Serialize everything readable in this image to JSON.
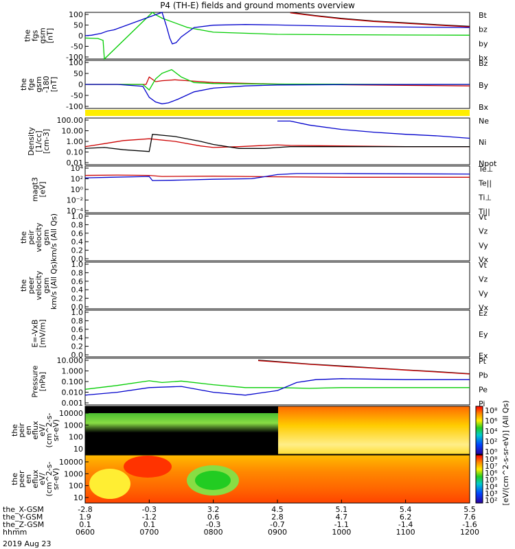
{
  "title": "P4 (TH-E) fields and ground moments overview",
  "colors": {
    "black": "#000000",
    "red": "#cc0000",
    "green": "#00cc00",
    "blue": "#0000cc",
    "yellow": "#ffee00"
  },
  "chart_data": {
    "type": "line",
    "panels": [
      {
        "id": "fgs",
        "ylabel_lines": [
          "the",
          "fgs",
          "gsm",
          "[nT]"
        ],
        "ytick_labels": [
          "100",
          "50",
          "0",
          "-50",
          "-100"
        ],
        "ylim": [
          -100,
          100
        ],
        "legend": [
          {
            "name": "Bt",
            "color": "black"
          },
          {
            "name": "bz",
            "color": "red"
          },
          {
            "name": "by",
            "color": "green"
          },
          {
            "name": "bx",
            "color": "blue"
          }
        ],
        "series": [
          {
            "name": "Bt",
            "color": "black",
            "x": [
              9.2,
              9.6,
              10.0,
              10.5,
              11.0,
              11.5,
              12.0
            ],
            "y": [
              100,
              86,
              74,
              63,
              55,
              47,
              40
            ]
          },
          {
            "name": "bz",
            "color": "red",
            "x": [
              9.2,
              9.6,
              10.0,
              10.5,
              11.0,
              11.5,
              12.0
            ],
            "y": [
              98,
              84,
              72,
              61,
              53,
              45,
              38
            ]
          },
          {
            "name": "by",
            "color": "green",
            "x": [
              6.0,
              6.2,
              6.28,
              6.3,
              7.05,
              7.1,
              7.2,
              7.4,
              7.6,
              8.0,
              9.0,
              10.0,
              11.0,
              12.0
            ],
            "y": [
              -10,
              -12,
              -20,
              -100,
              100,
              90,
              75,
              55,
              35,
              15,
              6,
              4,
              3,
              2
            ]
          },
          {
            "name": "bx",
            "color": "blue",
            "x": [
              6.0,
              6.1,
              6.25,
              6.35,
              6.45,
              7.2,
              7.27,
              7.32,
              7.36,
              7.42,
              7.5,
              7.7,
              8.0,
              8.5,
              9.0,
              10.0,
              11.0,
              12.0
            ],
            "y": [
              0,
              2,
              10,
              20,
              25,
              100,
              40,
              -10,
              -35,
              -30,
              -5,
              35,
              45,
              48,
              46,
              40,
              37,
              35
            ]
          }
        ]
      },
      {
        "id": "fge",
        "ylabel_lines": [
          "the",
          "fge",
          "gsm",
          "-180",
          "[nT]"
        ],
        "ytick_labels": [
          "100",
          "50",
          "0",
          "-50",
          "-100"
        ],
        "ylim": [
          -130,
          130
        ],
        "legend": [
          {
            "name": "Bz",
            "color": "red"
          },
          {
            "name": "By",
            "color": "green"
          },
          {
            "name": "Bx",
            "color": "blue"
          }
        ],
        "series": [
          {
            "name": "Bz",
            "color": "red",
            "x": [
              6.0,
              6.5,
              6.95,
              7.0,
              7.1,
              7.2,
              7.4,
              7.6,
              8.0,
              9.0,
              10.0,
              11.0,
              12.0
            ],
            "y": [
              0,
              0,
              0,
              40,
              15,
              20,
              25,
              20,
              10,
              2,
              -2,
              -5,
              -8
            ]
          },
          {
            "name": "By",
            "color": "green",
            "x": [
              6.0,
              6.5,
              6.9,
              7.0,
              7.1,
              7.2,
              7.35,
              7.5,
              7.7,
              8.0,
              9.0,
              10.0,
              11.0,
              12.0
            ],
            "y": [
              0,
              0,
              0,
              -30,
              30,
              60,
              80,
              40,
              10,
              5,
              2,
              1,
              0,
              0
            ]
          },
          {
            "name": "Bx",
            "color": "blue",
            "x": [
              6.0,
              6.5,
              6.9,
              7.0,
              7.1,
              7.2,
              7.3,
              7.45,
              7.7,
              8.0,
              8.5,
              9.0,
              10.0,
              12.0
            ],
            "y": [
              0,
              0,
              -10,
              -70,
              -95,
              -105,
              -100,
              -80,
              -40,
              -20,
              -8,
              -3,
              -1,
              0
            ]
          }
        ]
      },
      {
        "id": "density",
        "ylabel_lines": [
          "Density",
          "[1/cc]",
          "[cm-3]"
        ],
        "ytick_labels": [
          "100.00",
          "10.00",
          "1.00",
          "0.10",
          "0.01"
        ],
        "log": true,
        "ylim_log10": [
          -2.3,
          2.3
        ],
        "legend": [
          {
            "name": "Ne",
            "color": "red"
          },
          {
            "name": "Ni",
            "color": "black"
          },
          {
            "name": "Npot",
            "color": "blue"
          }
        ],
        "series": [
          {
            "name": "Ne",
            "color": "red",
            "x": [
              6.0,
              6.3,
              6.6,
              7.0,
              7.4,
              7.8,
              8.0,
              8.4,
              8.8,
              9.0,
              9.2,
              10.0,
              11.0,
              12.0
            ],
            "y": [
              0.3,
              0.6,
              1.2,
              1.8,
              1.0,
              0.35,
              0.25,
              0.3,
              0.4,
              0.45,
              0.4,
              0.35,
              0.3,
              0.3
            ]
          },
          {
            "name": "Ni",
            "color": "black",
            "x": [
              6.0,
              6.3,
              6.6,
              7.0,
              7.05,
              7.4,
              7.8,
              8.0,
              8.4,
              8.8,
              9.0,
              9.2,
              10.0,
              11.0,
              12.0
            ],
            "y": [
              0.2,
              0.25,
              0.15,
              0.1,
              5.0,
              3.0,
              1.0,
              0.5,
              0.2,
              0.2,
              0.25,
              0.3,
              0.3,
              0.3,
              0.3
            ]
          },
          {
            "name": "Npot",
            "color": "blue",
            "x": [
              9.0,
              9.2,
              9.5,
              10.0,
              10.5,
              11.0,
              11.5,
              12.0
            ],
            "y": [
              100,
              100,
              40,
              15,
              8,
              5,
              3.5,
              2
            ]
          }
        ]
      },
      {
        "id": "temperature",
        "ylabel_lines": [
          "magt3",
          "[eV]"
        ],
        "ytick_labels": [
          "10⁴",
          "10²",
          "10⁰",
          "10⁻²",
          "10⁻⁴"
        ],
        "log": true,
        "ylim_log10": [
          -5,
          5
        ],
        "legend": [
          {
            "name": "Te⊥",
            "color": "red"
          },
          {
            "name": "Te||",
            "color": "black"
          },
          {
            "name": "Ti⊥",
            "color": "green"
          },
          {
            "name": "Ti||",
            "color": "green"
          }
        ],
        "series": [
          {
            "name": "Te⊥",
            "color": "red",
            "x": [
              6.0,
              6.5,
              7.0,
              7.2,
              8.0,
              9.0,
              10.0,
              11.0,
              12.0
            ],
            "y": [
              1000,
              1200,
              1000,
              600,
              700,
              500,
              400,
              400,
              400
            ]
          },
          {
            "name": "Ti",
            "color": "blue",
            "x": [
              6.0,
              6.4,
              7.0,
              7.05,
              7.5,
              8.0,
              8.6,
              9.0,
              9.3,
              10.0,
              11.0,
              12.0
            ],
            "y": [
              300,
              400,
              600,
              80,
              100,
              150,
              200,
              1500,
              2500,
              2500,
              2200,
              2000
            ]
          }
        ]
      },
      {
        "id": "peir_velocity",
        "ylabel_lines": [
          "the",
          "peir",
          "velocity",
          "gsm",
          "km/s (All Qs)"
        ],
        "ytick_labels": [
          "1.0",
          "0.8",
          "0.6",
          "0.4",
          "0.2",
          "0.0"
        ],
        "ylim": [
          0,
          1
        ],
        "legend": [
          {
            "name": "Vt",
            "color": "black"
          },
          {
            "name": "Vz",
            "color": "red"
          },
          {
            "name": "Vy",
            "color": "green"
          },
          {
            "name": "Vx",
            "color": "blue"
          }
        ],
        "series": []
      },
      {
        "id": "peer_velocity",
        "ylabel_lines": [
          "the",
          "peer",
          "velocity",
          "gsm",
          "km/s (All Qs)"
        ],
        "ytick_labels": [
          "1.0",
          "0.8",
          "0.6",
          "0.4",
          "0.2",
          "0.0"
        ],
        "ylim": [
          0,
          1
        ],
        "legend": [
          {
            "name": "Vt",
            "color": "black"
          },
          {
            "name": "Vz",
            "color": "red"
          },
          {
            "name": "Vy",
            "color": "green"
          },
          {
            "name": "Vx",
            "color": "blue"
          }
        ],
        "series": []
      },
      {
        "id": "efield",
        "ylabel_lines": [
          "E=-VxB",
          "[mV/m]"
        ],
        "ytick_labels": [
          "1.0",
          "0.8",
          "0.6",
          "0.4",
          "0.2",
          "0.0"
        ],
        "ylim": [
          0,
          1
        ],
        "legend": [
          {
            "name": "Ez",
            "color": "red"
          },
          {
            "name": "Ey",
            "color": "green"
          },
          {
            "name": "Ex",
            "color": "blue"
          }
        ],
        "series": []
      },
      {
        "id": "pressure",
        "ylabel_lines": [
          "Pressure",
          "[nPa]"
        ],
        "ytick_labels": [
          "10.000",
          "1.000",
          "0.100",
          "0.010",
          "0.001"
        ],
        "log": true,
        "ylim_log10": [
          -3.3,
          1.5
        ],
        "legend": [
          {
            "name": "Pt",
            "color": "black"
          },
          {
            "name": "Pb",
            "color": "red"
          },
          {
            "name": "Pe",
            "color": "green"
          },
          {
            "name": "Pi",
            "color": "blue"
          }
        ],
        "series": [
          {
            "name": "Pt",
            "color": "black",
            "x": [
              8.7,
              9.5,
              10.0,
              10.5,
              11.0,
              11.5,
              12.0
            ],
            "y": [
              20,
              8,
              5,
              3.2,
              2,
              1.3,
              0.8
            ]
          },
          {
            "name": "Pb",
            "color": "red",
            "x": [
              8.7,
              9.5,
              10.0,
              10.5,
              11.0,
              11.5,
              12.0
            ],
            "y": [
              18,
              7.5,
              4.6,
              3.0,
              1.9,
              1.2,
              0.75
            ]
          },
          {
            "name": "Pe",
            "color": "green",
            "x": [
              6.0,
              6.5,
              7.0,
              7.2,
              7.5,
              8.0,
              8.5,
              9.0,
              9.5,
              10.0,
              11.0,
              12.0
            ],
            "y": [
              0.02,
              0.05,
              0.15,
              0.1,
              0.14,
              0.06,
              0.03,
              0.03,
              0.025,
              0.03,
              0.03,
              0.03
            ]
          },
          {
            "name": "Pi",
            "color": "blue",
            "x": [
              6.0,
              6.5,
              7.0,
              7.5,
              8.0,
              8.5,
              9.0,
              9.3,
              9.6,
              10.0,
              11.0,
              12.0
            ],
            "y": [
              0.005,
              0.01,
              0.03,
              0.04,
              0.01,
              0.005,
              0.015,
              0.1,
              0.2,
              0.25,
              0.2,
              0.2
            ]
          }
        ]
      }
    ],
    "spectrograms": [
      {
        "id": "peir_en_eflux",
        "ylabel_lines": [
          "the",
          "peir",
          "en",
          "eflux",
          "eV/",
          "(cm^2-s-",
          "sr-eV)"
        ],
        "ytick_labels": [
          "10000",
          "1000",
          "100",
          "10"
        ]
      },
      {
        "id": "peer_en_eflux",
        "ylabel_lines": [
          "the",
          "peer",
          "en",
          "eflux",
          "eV/",
          "(cm^2-s-",
          "sr-eV)"
        ],
        "ytick_labels": [
          "10000",
          "1000",
          "100",
          "10"
        ]
      }
    ],
    "colorbars": [
      {
        "tick_labels": [
          "10⁸",
          "10⁶",
          "10⁴",
          "10²",
          "10⁰"
        ],
        "label": "[eV/(cm^2-s-sr-eV)] (All Qs)"
      },
      {
        "tick_labels": [
          "10⁸",
          "10⁷",
          "10⁶",
          "10⁵",
          "10⁴",
          "10³",
          "10²"
        ],
        "label": "[eV/(cm^2-s-sr-eV)]"
      }
    ],
    "x_axis": {
      "rows": [
        {
          "label": "the_X-GSM",
          "values": [
            "-2.8",
            "-0.3",
            "3.2",
            "4.5",
            "5.1",
            "5.4",
            "5.5"
          ]
        },
        {
          "label": "the_Y-GSM",
          "values": [
            "1.9",
            "-1.2",
            "0.6",
            "2.8",
            "4.7",
            "6.2",
            "7.6"
          ]
        },
        {
          "label": "the_Z-GSM",
          "values": [
            "0.1",
            "0.1",
            "-0.3",
            "-0.7",
            "-1.1",
            "-1.4",
            "-1.6"
          ]
        },
        {
          "label": "hhmm",
          "values": [
            "0600",
            "0700",
            "0800",
            "0900",
            "1000",
            "1100",
            "1200"
          ]
        }
      ],
      "date": "2019 Aug 23",
      "xlim_hours": [
        6,
        12
      ]
    }
  }
}
